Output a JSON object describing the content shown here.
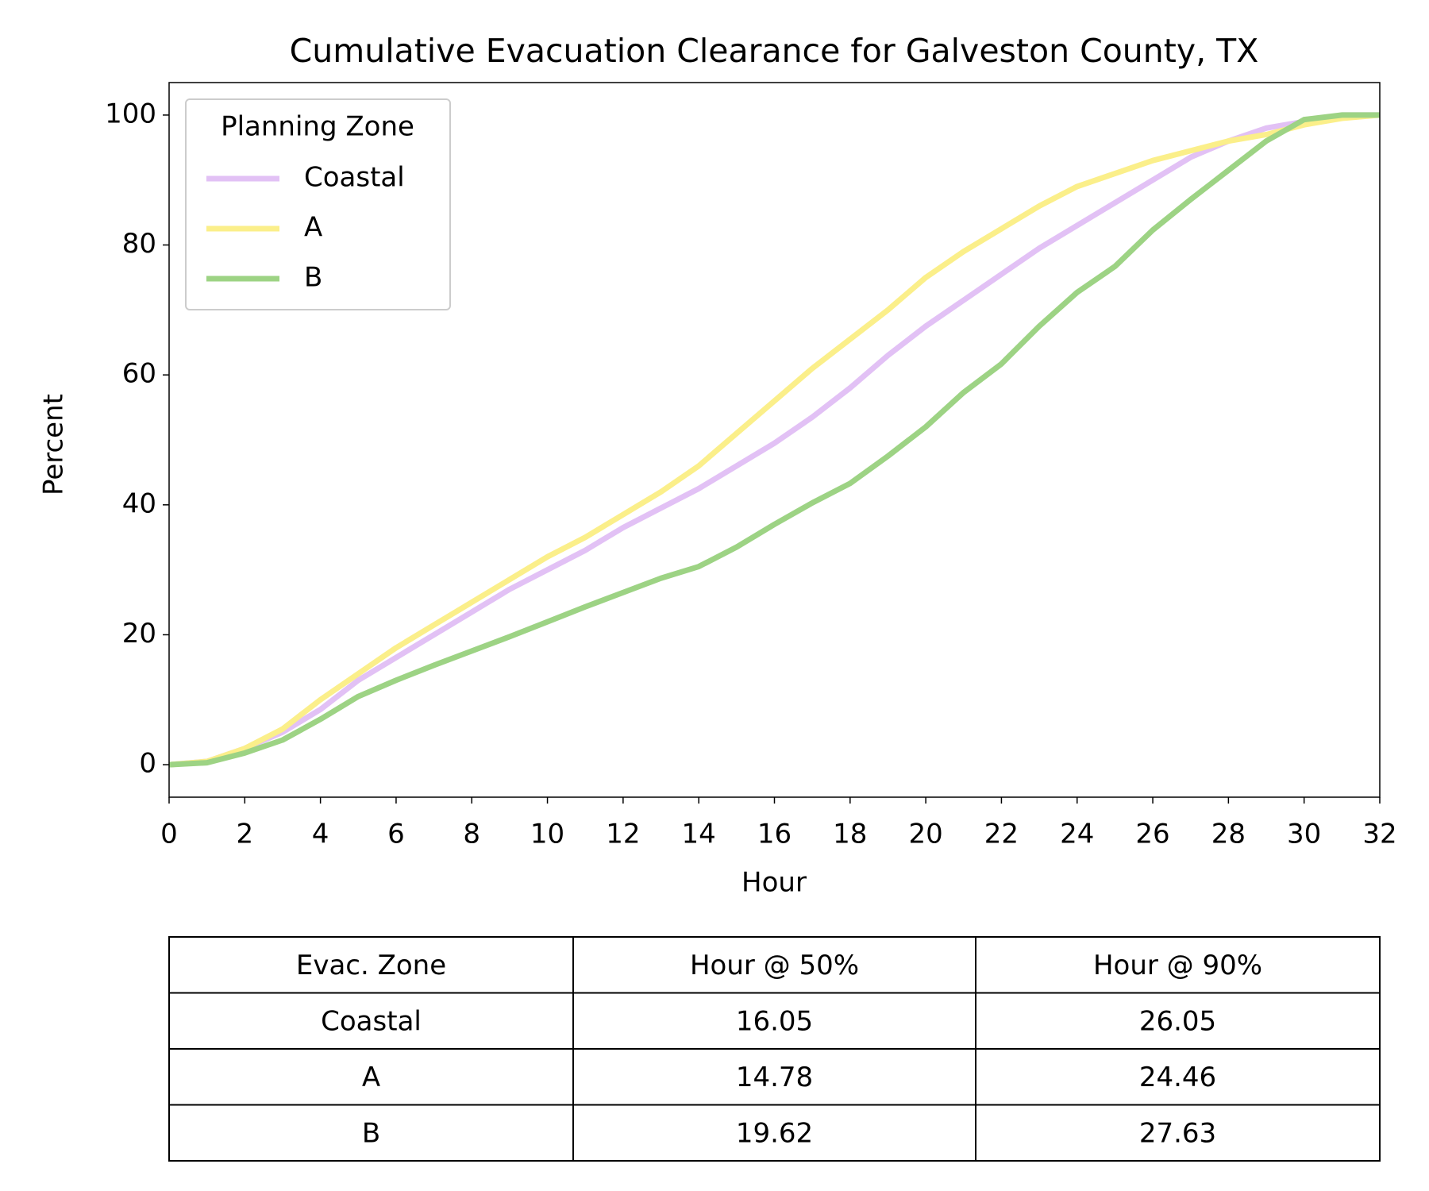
{
  "chart_data": {
    "type": "line",
    "title": "Cumulative Evacuation Clearance for Galveston County, TX",
    "x_label": "Hour",
    "y_label": "Percent",
    "x": [
      0,
      1,
      2,
      3,
      4,
      5,
      6,
      7,
      8,
      9,
      10,
      11,
      12,
      13,
      14,
      15,
      16,
      17,
      18,
      19,
      20,
      21,
      22,
      23,
      24,
      25,
      26,
      27,
      28,
      29,
      30,
      31,
      32
    ],
    "series": [
      {
        "name": "Coastal",
        "color": "#e2c1f5",
        "values": [
          0,
          0.5,
          2.5,
          5,
          8.5,
          13,
          16.5,
          20,
          23.5,
          27,
          30,
          33,
          36.5,
          39.5,
          42.5,
          46,
          49.5,
          53.5,
          58,
          63,
          67.5,
          71.5,
          75.5,
          79.5,
          83,
          86.5,
          90,
          93.5,
          96,
          98,
          99,
          100,
          100
        ]
      },
      {
        "name": "A",
        "color": "#fbef8a",
        "values": [
          0,
          0.5,
          2.5,
          5.5,
          10,
          14,
          18,
          21.5,
          25,
          28.5,
          32,
          35,
          38.5,
          42,
          46,
          51,
          56,
          61,
          65.5,
          70,
          75,
          79,
          82.5,
          86,
          89,
          91,
          93,
          94.5,
          96,
          97,
          98.5,
          99.5,
          100
        ]
      },
      {
        "name": "B",
        "color": "#9dd384",
        "values": [
          0,
          0.3,
          1.8,
          3.8,
          7,
          10.5,
          13,
          15.3,
          17.5,
          19.7,
          22,
          24.3,
          26.5,
          28.7,
          30.5,
          33.5,
          37,
          40.3,
          43.3,
          47.5,
          52,
          57.3,
          61.7,
          67.5,
          72.7,
          76.7,
          82.3,
          87,
          91.5,
          96,
          99.3,
          100,
          100
        ]
      }
    ],
    "legend_title": "Planning Zone",
    "legend": "upper left",
    "xlim": [
      0,
      32
    ],
    "xticks": [
      0,
      2,
      4,
      6,
      8,
      10,
      12,
      14,
      16,
      18,
      20,
      22,
      24,
      26,
      28,
      30,
      32
    ],
    "ylim": [
      -5,
      105
    ],
    "yticks": [
      0,
      20,
      40,
      60,
      80,
      100
    ],
    "grid": false
  },
  "table": {
    "header": [
      "Evac. Zone",
      "Hour @ 50%",
      "Hour @ 90%"
    ],
    "rows": [
      [
        "Coastal",
        16.05,
        26.05
      ],
      [
        "A",
        14.78,
        24.46
      ],
      [
        "B",
        19.62,
        27.63
      ]
    ]
  }
}
